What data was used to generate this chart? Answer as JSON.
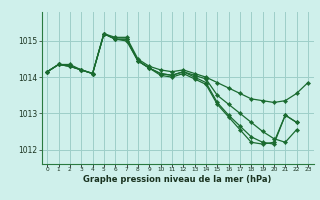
{
  "background_color": "#cff0eb",
  "grid_color": "#9ecec8",
  "line_color": "#1a6b30",
  "title": "Graphe pression niveau de la mer (hPa)",
  "xlabel_ticks": [
    "0",
    "1",
    "2",
    "3",
    "4",
    "5",
    "6",
    "7",
    "8",
    "9",
    "10",
    "11",
    "12",
    "13",
    "14",
    "15",
    "16",
    "17",
    "18",
    "19",
    "20",
    "21",
    "22",
    "23"
  ],
  "ylim": [
    1011.6,
    1015.8
  ],
  "yticks": [
    1012,
    1013,
    1014,
    1015
  ],
  "series": [
    [
      1014.15,
      1014.35,
      1014.35,
      1014.2,
      1014.1,
      1015.2,
      1015.1,
      1015.1,
      1014.5,
      1014.3,
      1014.2,
      1014.15,
      1014.2,
      1014.1,
      1014.0,
      1013.85,
      1013.7,
      1013.55,
      1013.4,
      1013.35,
      1013.3,
      1013.35,
      1013.55,
      1013.85
    ],
    [
      1014.15,
      1014.35,
      1014.3,
      1014.2,
      1014.1,
      1015.2,
      1015.05,
      1015.05,
      1014.45,
      1014.25,
      1014.1,
      1014.05,
      1014.15,
      1014.05,
      1013.95,
      1013.5,
      1013.25,
      1013.0,
      1012.75,
      1012.5,
      1012.3,
      1012.2,
      1012.55,
      null
    ],
    [
      1014.15,
      1014.35,
      1014.3,
      1014.2,
      1014.1,
      1015.2,
      1015.05,
      1015.05,
      1014.45,
      1014.25,
      1014.1,
      1014.05,
      1014.15,
      1014.0,
      1013.85,
      1013.3,
      1012.95,
      1012.65,
      1012.35,
      1012.2,
      1012.15,
      1012.95,
      1012.75,
      null
    ],
    [
      1014.15,
      1014.35,
      1014.3,
      1014.2,
      1014.1,
      1015.2,
      1015.05,
      1015.0,
      1014.45,
      1014.25,
      1014.05,
      1014.0,
      1014.1,
      1013.95,
      1013.8,
      1013.25,
      1012.9,
      1012.55,
      1012.2,
      1012.15,
      1012.2,
      1012.95,
      1012.75,
      null
    ]
  ]
}
